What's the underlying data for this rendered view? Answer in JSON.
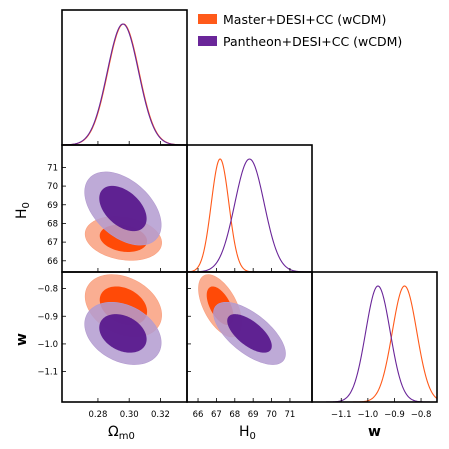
{
  "chart_data": {
    "type": "corner",
    "legend": {
      "placement": "top-right",
      "entries": [
        {
          "name": "Master+DESI+CC (wCDM)",
          "color": "#ff5a1a"
        },
        {
          "name": "Pantheon+DESI+CC (wCDM)",
          "color": "#6a2699"
        }
      ]
    },
    "parameters": [
      {
        "key": "om",
        "label_main": "Ω",
        "label_sub": "m0",
        "range": [
          0.257,
          0.337
        ],
        "ticks": [
          0.28,
          0.3,
          0.32
        ],
        "tick_labels": [
          "0.28",
          "0.30",
          "0.32"
        ]
      },
      {
        "key": "h0",
        "label_main": "H",
        "label_sub": "0",
        "range": [
          65.4,
          72.2
        ],
        "ticks": [
          66,
          67,
          68,
          69,
          70,
          71
        ],
        "tick_labels": [
          "66",
          "67",
          "68",
          "69",
          "70",
          "71"
        ]
      },
      {
        "key": "w",
        "label_main": "w",
        "label_sub": "",
        "range": [
          -1.21,
          -0.74
        ],
        "ticks": [
          -1.1,
          -1.0,
          -0.9,
          -0.8
        ],
        "tick_labels": [
          "−1.1",
          "−1.0",
          "−0.9",
          "−0.8"
        ]
      }
    ],
    "series": [
      {
        "name": "Master+DESI+CC (wCDM)",
        "color_68": "#ff4400",
        "color_95": "#f9a07f",
        "mean": {
          "om": 0.2963,
          "h0": 67.2,
          "w": -0.862
        },
        "sigma": {
          "om": 0.01,
          "h0": 0.48,
          "w": 0.046
        },
        "correlation": {
          "om_h0": -0.2,
          "om_w": -0.3,
          "h0_w": -0.55
        }
      },
      {
        "name": "Pantheon+DESI+CC (wCDM)",
        "color_68": "#5a1a8e",
        "color_95": "#b39bd0",
        "mean": {
          "om": 0.296,
          "h0": 68.8,
          "w": -0.962
        },
        "sigma": {
          "om": 0.01,
          "h0": 0.8,
          "w": 0.046
        },
        "correlation": {
          "om_h0": -0.45,
          "om_w": -0.3,
          "h0_w": -0.65
        }
      }
    ]
  }
}
